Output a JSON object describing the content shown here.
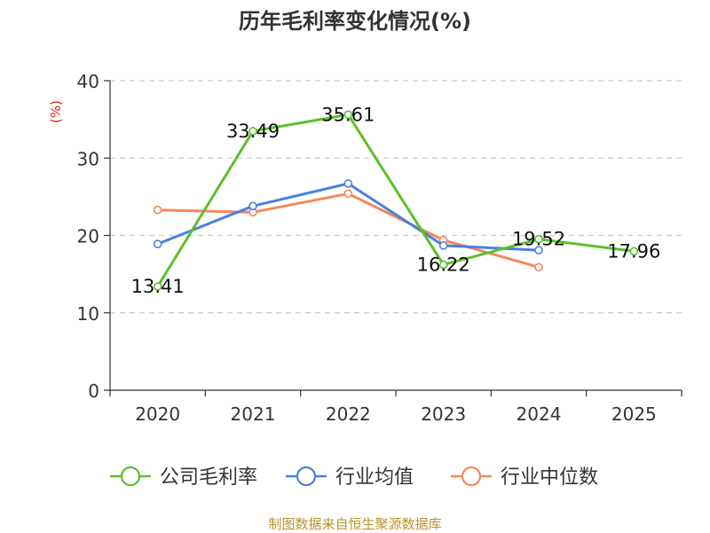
{
  "source_note": "制图数据来自恒生聚源数据库",
  "chart_data": {
    "type": "line",
    "title": "历年毛利率变化情况(%)",
    "ylabel": "(%)",
    "xlabel": "",
    "ylim": [
      0,
      40
    ],
    "yticks": [
      0,
      10,
      20,
      30,
      40
    ],
    "grid": true,
    "legend_position": "bottom",
    "categories": [
      "2020",
      "2021",
      "2022",
      "2023",
      "2024",
      "2025"
    ],
    "series": [
      {
        "name": "公司毛利率",
        "color": "#5cc02c",
        "values": [
          13.41,
          33.49,
          35.61,
          16.22,
          19.52,
          17.96
        ],
        "data_labels": [
          "13.41",
          "33.49",
          "35.61",
          "16.22",
          "19.52",
          "17.96"
        ]
      },
      {
        "name": "行业均值",
        "color": "#4a7fdf",
        "values": [
          18.9,
          23.8,
          26.7,
          18.7,
          18.1,
          null
        ]
      },
      {
        "name": "行业中位数",
        "color": "#f2895a",
        "values": [
          23.3,
          23.0,
          25.4,
          19.4,
          15.9,
          null
        ]
      }
    ]
  }
}
